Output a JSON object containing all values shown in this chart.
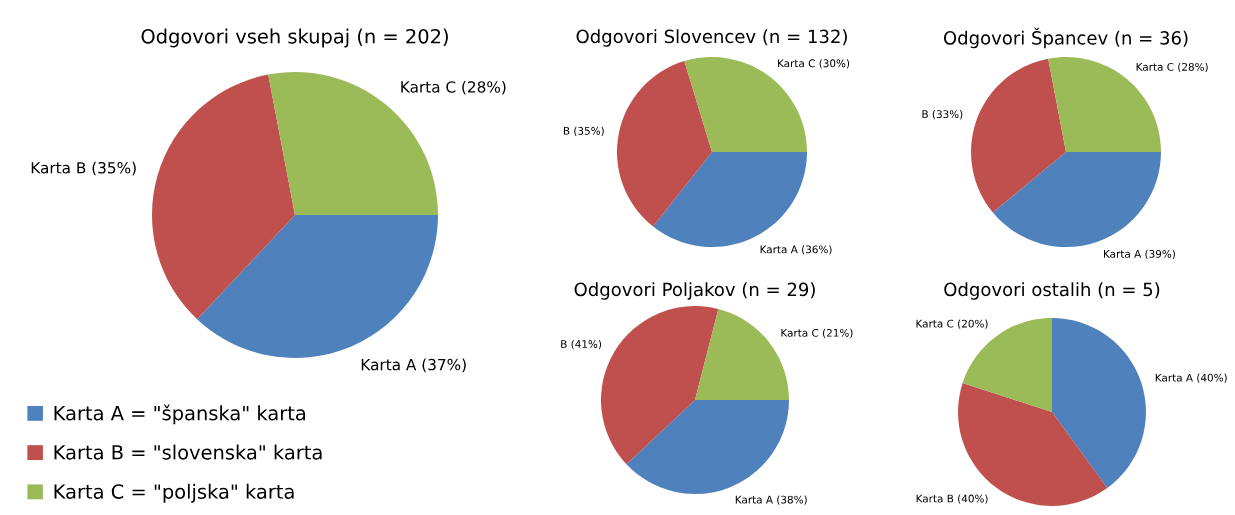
{
  "chart_data": [
    {
      "type": "pie",
      "title": "Odgovori vseh skupaj (n = 202)",
      "categories": [
        "Karta A = \"španska\" karta",
        "Karta B = \"slovenska\" karta",
        "Karta C = \"poljska\" karta"
      ],
      "values": [
        37,
        35,
        28
      ],
      "colors": [
        "#4f81bd",
        "#c0504d",
        "#9bbb59"
      ],
      "value_labels": [
        "Karta A (37%)",
        "Karta B (35%)",
        "Karta C (28%)"
      ],
      "legend": "bottom left"
    },
    {
      "type": "pie",
      "title": "Odgovori Slovencev (n = 132)",
      "categories": [
        null,
        null,
        null
      ],
      "values": [
        36,
        35,
        30
      ],
      "colors": [
        "#4f81bd",
        "#c0504d",
        "#9bbb59"
      ],
      "value_labels": [
        "Karta A (36%)",
        "B (35%)",
        "Karta C (30%)"
      ]
    },
    {
      "type": "pie",
      "title": "Odgovori Špancev (n = 36)",
      "categories": [
        null,
        null,
        null
      ],
      "values": [
        39,
        33,
        28
      ],
      "colors": [
        "#4f81bd",
        "#c0504d",
        "#9bbb59"
      ],
      "value_labels": [
        "Karta A (39%)",
        "B (33%)",
        "Karta C (28%)"
      ]
    },
    {
      "type": "pie",
      "title": "Odgovori Poljakov (n = 29)",
      "categories": [
        null,
        null,
        null
      ],
      "values": [
        38,
        41,
        21
      ],
      "colors": [
        "#4f81bd",
        "#c0504d",
        "#9bbb59"
      ],
      "value_labels": [
        "Karta A (38%)",
        "B (41%)",
        "Karta C (21%)"
      ]
    },
    {
      "type": "pie",
      "title": "Odgovori ostalih (n = 5)",
      "categories": [
        null,
        null,
        null
      ],
      "values": [
        40,
        40,
        20
      ],
      "colors": [
        "#4f81bd",
        "#c0504d",
        "#9bbb59"
      ],
      "value_labels": [
        "Karta A (40%)",
        "Karta B (40%)",
        "Karta C (20%)"
      ]
    }
  ]
}
